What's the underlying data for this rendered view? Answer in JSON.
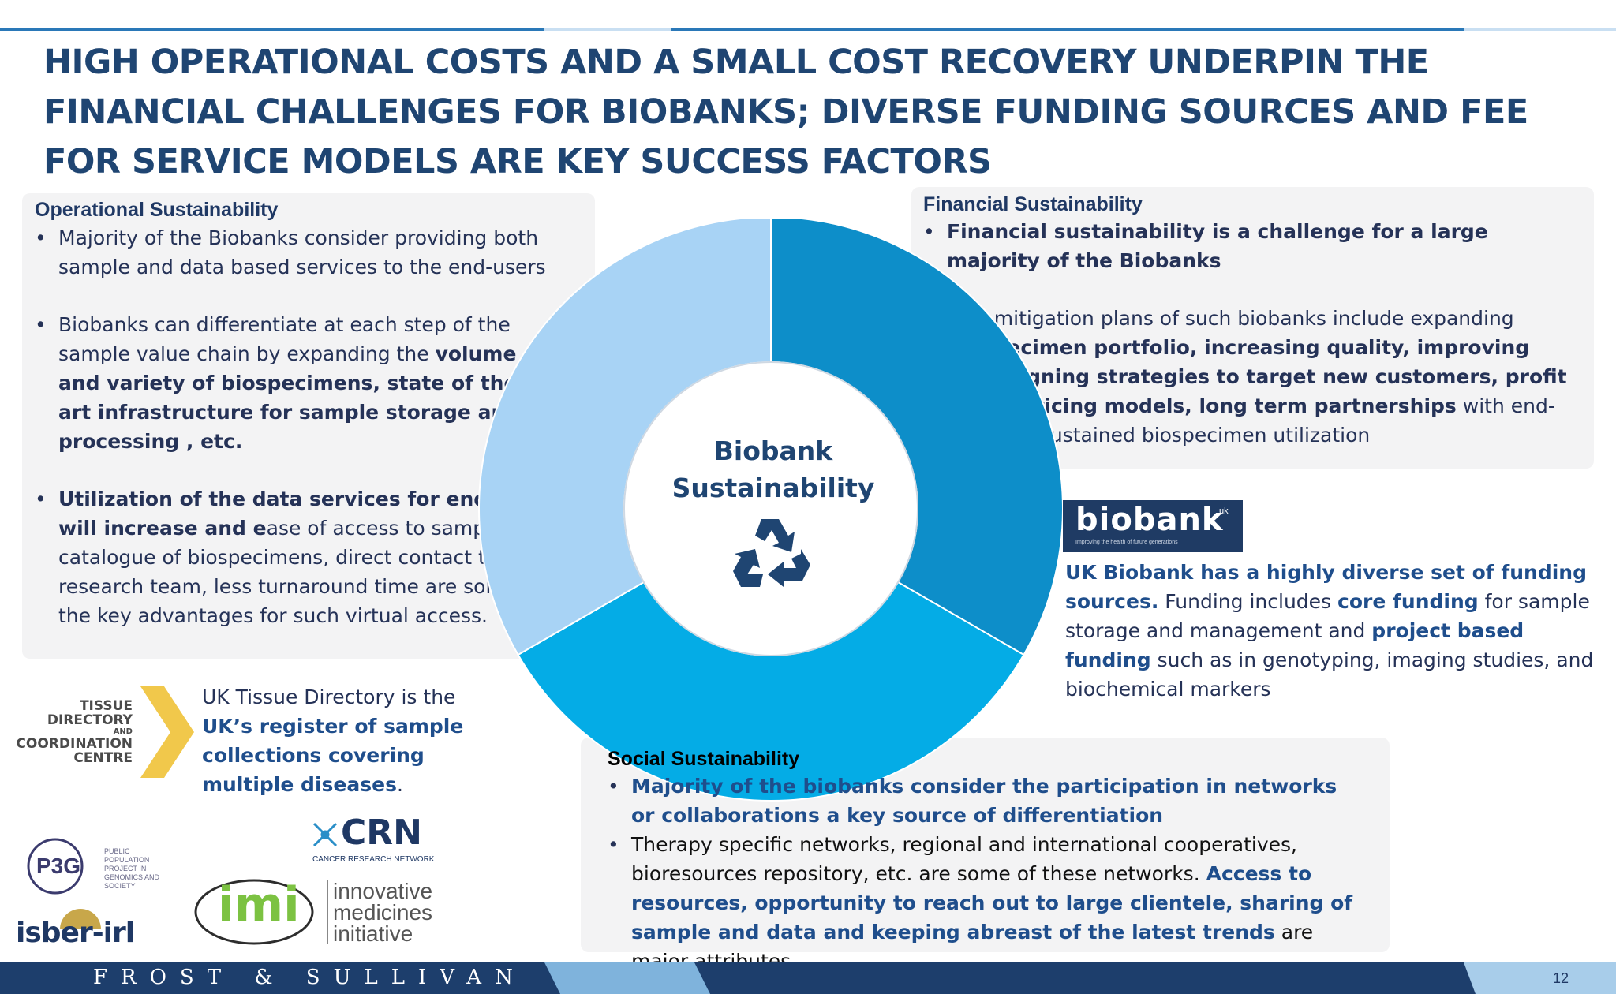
{
  "slide": {
    "title": "HIGH OPERATIONAL COSTS AND A SMALL COST RECOVERY UNDERPIN THE FINANCIAL CHALLENGES FOR BIOBANKS; DIVERSE FUNDING SOURCES AND FEE FOR SERVICE MODELS ARE KEY SUCCESS FACTORS",
    "page_number": "12"
  },
  "colors": {
    "title": "#1f4572",
    "segment_light": "#a8d3f5",
    "segment_dark": "#0d8ec9",
    "segment_mid": "#04ace6",
    "footer": "#1d3e6c"
  },
  "operational": {
    "heading": "Operational Sustainability",
    "b1": "Majority of the Biobanks consider providing both sample and data based services to the end-users",
    "b2_pre": "Biobanks can differentiate at each step of the sample value chain by expanding the ",
    "b2_bold": "volume and variety of biospecimens, state of the art infrastructure for sample storage and processing , etc.",
    "b3_bold": "Utilization of the data services for end users will increase and e",
    "b3_rest": "ase of access to samples, catalogue of biospecimens, direct contact to the research team, less turnaround time are some of the key advantages for such virtual access."
  },
  "financial": {
    "heading": "Financial Sustainability",
    "b1_bold": "Financial sustainability  is a challenge for a large majority of the Biobanks",
    "b2_pre": "Risk mitigation plans of such biobanks include expanding ",
    "b2_bold": "biospecimen portfolio, increasing quality, improving campaigning strategies to target new customers, profit based pricing models, long term partnerships",
    "b2_post": " with end-users for sustained biospecimen utilization"
  },
  "ukbiobank": {
    "logo_text": "biobank",
    "logo_sup": "uk",
    "logo_tagline": "Improving the health of future generations",
    "t1_bold": "UK Biobank has a highly diverse set of funding sources.",
    "t2": " Funding includes ",
    "t3_bold": "core funding",
    "t4": " for sample storage and management and ",
    "t5_bold": "project based funding",
    "t6": " such as in genotyping, imaging studies, and biochemical markers"
  },
  "center": {
    "label": "Biobank Sustainability",
    "icon": "recycle-icon"
  },
  "tissue": {
    "logo_lines": [
      "TISSUE",
      "DIRECTORY",
      "AND",
      "COORDINATION",
      "CENTRE"
    ],
    "t1": "UK Tissue Directory is the ",
    "t2_bold": "UK’s register of sample collections covering multiple diseases",
    "t3": "."
  },
  "social": {
    "heading": "Social Sustainability",
    "b1_bold": "Majority of the biobanks consider the participation in networks or collaborations a key source of differentiation",
    "b2_pre": "Therapy specific networks, regional and international cooperatives, bioresources repository, etc. are some of these networks. ",
    "b2_bold": "Access to resources, opportunity to reach out to large clientele, sharing of sample and data and keeping abreast of the latest trends",
    "b2_post": " are major attributes"
  },
  "logos": {
    "p3g": "P3G",
    "p3g_text": "PUBLIC POPULATION PROJECT IN GENOMICS AND SOCIETY",
    "crn": "CRN",
    "crn_sub": "CANCER RESEARCH NETWORK",
    "imi": "imi",
    "imi_text": [
      "innovative",
      "medicines",
      "initiative"
    ],
    "isber": "isber-irl"
  },
  "footer": {
    "brand": "FROST & SULLIVAN"
  }
}
